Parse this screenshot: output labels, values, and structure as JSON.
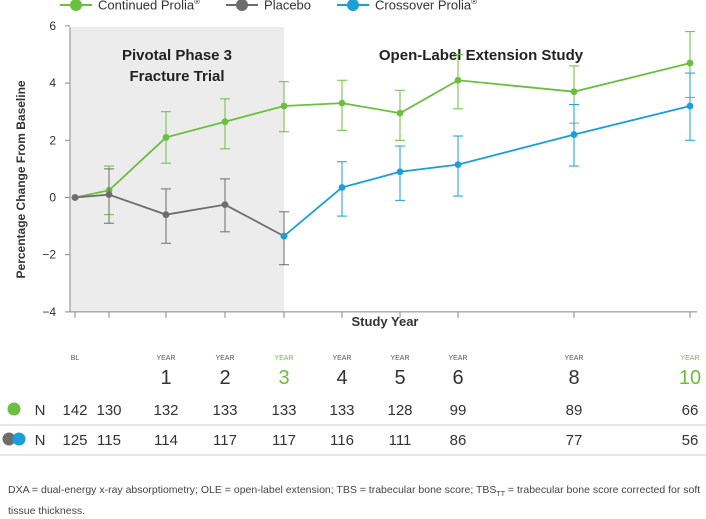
{
  "legend": [
    {
      "label": "Continued Prolia",
      "sup": "®",
      "color": "#6abf3f"
    },
    {
      "label": "Placebo",
      "sup": "",
      "color": "#6d6d6d"
    },
    {
      "label": "Crossover Prolia",
      "sup": "®",
      "color": "#1a9fd8"
    }
  ],
  "annotations": {
    "phase_label_1": "Pivotal Phase 3",
    "phase_label_2": "Fracture Trial",
    "ole_label": "Open-Label Extension Study"
  },
  "footnote": {
    "part1": "DXA = dual-energy x-ray absorptiometry; OLE = open-label extension; TBS = trabecular bone score; TBS",
    "sub": "TT",
    "part2": " = trabecular bone score corrected for soft tissue thickness."
  },
  "chart_data": {
    "type": "line",
    "title": "",
    "xlabel": "Study Year",
    "ylabel": "Percentage Change From Baseline",
    "ylim": [
      -4,
      7
    ],
    "yticks": [
      -4,
      -2,
      0,
      2,
      4,
      6
    ],
    "grid": false,
    "legend_position": "top",
    "x_ticks": [
      {
        "x": 0,
        "small": "BL",
        "big": "",
        "highlight": false
      },
      {
        "x": 0.6,
        "small": "",
        "big": "",
        "highlight": false
      },
      {
        "x": 1,
        "small": "YEAR",
        "big": "1",
        "highlight": false
      },
      {
        "x": 2,
        "small": "YEAR",
        "big": "2",
        "highlight": false
      },
      {
        "x": 3,
        "small": "YEAR",
        "big": "3",
        "highlight": true
      },
      {
        "x": 4,
        "small": "YEAR",
        "big": "4",
        "highlight": false
      },
      {
        "x": 5,
        "small": "YEAR",
        "big": "5",
        "highlight": false
      },
      {
        "x": 6,
        "small": "YEAR",
        "big": "6",
        "highlight": false
      },
      {
        "x": 8,
        "small": "YEAR",
        "big": "8",
        "highlight": false
      },
      {
        "x": 10,
        "small": "YEAR",
        "big": "10",
        "highlight": true
      }
    ],
    "series": [
      {
        "name": "Continued Prolia®",
        "color": "#6abf3f",
        "points": [
          {
            "x": 0,
            "y": 0,
            "lo": 0,
            "hi": 0
          },
          {
            "x": 0.6,
            "y": 0.25,
            "lo": -0.6,
            "hi": 1.1
          },
          {
            "x": 1,
            "y": 2.1,
            "lo": 1.2,
            "hi": 3.0
          },
          {
            "x": 2,
            "y": 2.65,
            "lo": 1.7,
            "hi": 3.45
          },
          {
            "x": 3,
            "y": 3.2,
            "lo": 2.3,
            "hi": 4.05
          },
          {
            "x": 4,
            "y": 3.3,
            "lo": 2.35,
            "hi": 4.1
          },
          {
            "x": 5,
            "y": 2.95,
            "lo": 2.0,
            "hi": 3.75
          },
          {
            "x": 6,
            "y": 4.1,
            "lo": 3.1,
            "hi": 5.0
          },
          {
            "x": 8,
            "y": 3.7,
            "lo": 2.6,
            "hi": 4.6
          },
          {
            "x": 10,
            "y": 4.7,
            "lo": 3.5,
            "hi": 5.8
          }
        ]
      },
      {
        "name": "Placebo",
        "color": "#6d6d6d",
        "points": [
          {
            "x": 0,
            "y": 0,
            "lo": 0,
            "hi": 0
          },
          {
            "x": 0.6,
            "y": 0.1,
            "lo": -0.9,
            "hi": 1.0
          },
          {
            "x": 1,
            "y": -0.6,
            "lo": -1.6,
            "hi": 0.3
          },
          {
            "x": 2,
            "y": -0.25,
            "lo": -1.2,
            "hi": 0.65
          },
          {
            "x": 3,
            "y": -1.35,
            "lo": -2.35,
            "hi": -0.5
          }
        ]
      },
      {
        "name": "Crossover Prolia®",
        "color": "#1a9fd8",
        "points": [
          {
            "x": 3,
            "y": -1.35,
            "lo": -1.35,
            "hi": -1.35
          },
          {
            "x": 4,
            "y": 0.35,
            "lo": -0.65,
            "hi": 1.25
          },
          {
            "x": 5,
            "y": 0.9,
            "lo": -0.1,
            "hi": 1.8
          },
          {
            "x": 6,
            "y": 1.15,
            "lo": 0.05,
            "hi": 2.15
          },
          {
            "x": 8,
            "y": 2.2,
            "lo": 1.1,
            "hi": 3.25
          },
          {
            "x": 10,
            "y": 3.2,
            "lo": 2.0,
            "hi": 4.35
          }
        ]
      }
    ],
    "n_rows": [
      {
        "label": "N",
        "marker": "green",
        "values": [
          "142",
          "130",
          "132",
          "133",
          "133",
          "133",
          "128",
          "99",
          "89",
          "66"
        ]
      },
      {
        "label": "N",
        "marker": "gray-blue",
        "values": [
          "125",
          "115",
          "114",
          "117",
          "117",
          "116",
          "111",
          "86",
          "77",
          "56"
        ]
      }
    ]
  }
}
